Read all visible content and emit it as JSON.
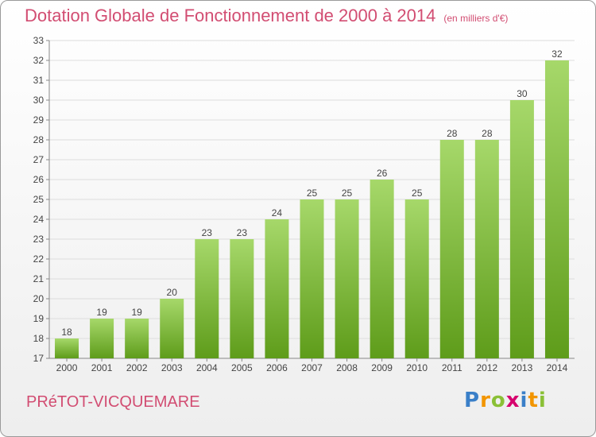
{
  "title": "Dotation Globale de Fonctionnement de 2000 à 2014",
  "unit": "(en milliers d'€)",
  "commune": "PRéTOT-VICQUEMARE",
  "logo": {
    "letters": [
      "P",
      "r",
      "o",
      "x",
      "i",
      "t",
      "i"
    ],
    "colors": [
      "#3a7fc8",
      "#f29500",
      "#8ac036",
      "#d6006d",
      "#3a7fc8",
      "#f29500",
      "#8ac036"
    ]
  },
  "colors": {
    "bar_top": "#a6d86a",
    "bar_bottom": "#5e9c1a",
    "accent": "#d24d72"
  },
  "chart_data": {
    "type": "bar",
    "categories": [
      "2000",
      "2001",
      "2002",
      "2003",
      "2004",
      "2005",
      "2006",
      "2007",
      "2008",
      "2009",
      "2010",
      "2011",
      "2012",
      "2013",
      "2014"
    ],
    "values": [
      18,
      19,
      19,
      20,
      23,
      23,
      24,
      25,
      25,
      26,
      25,
      28,
      28,
      30,
      32
    ],
    "ylim": [
      17,
      33
    ],
    "yticks": [
      17,
      18,
      19,
      20,
      21,
      22,
      23,
      24,
      25,
      26,
      27,
      28,
      29,
      30,
      31,
      32,
      33
    ],
    "grid": true,
    "legend": "none"
  }
}
